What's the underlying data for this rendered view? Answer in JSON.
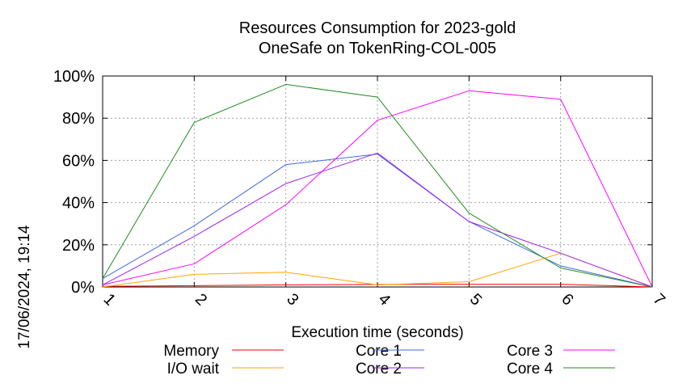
{
  "chart_data": {
    "type": "line",
    "title": [
      "Resources Consumption for 2023-gold",
      "OneSafe on TokenRing-COL-005"
    ],
    "xlabel": "Execution time (seconds)",
    "ylabel": "",
    "timestamp": "17/06/2024, 19:14",
    "xlim": [
      1,
      7
    ],
    "ylim": [
      0,
      100
    ],
    "x_ticks": [
      "1",
      "2",
      "3",
      "4",
      "5",
      "6",
      "7"
    ],
    "y_ticks": [
      "0%",
      "20%",
      "40%",
      "60%",
      "80%",
      "100%"
    ],
    "y_tick_values": [
      0,
      20,
      40,
      60,
      80,
      100
    ],
    "grid": true,
    "legend_position": "bottom",
    "x": [
      1,
      2,
      3,
      4,
      5,
      6,
      7
    ],
    "series": [
      {
        "name": "Memory",
        "color": "#ff0000",
        "values": [
          0.3,
          0.6,
          1.0,
          1.2,
          1.3,
          1.3,
          0
        ]
      },
      {
        "name": "I/O wait",
        "color": "#ffa500",
        "values": [
          0,
          6,
          7,
          1,
          2.5,
          16,
          0
        ]
      },
      {
        "name": "Core 1",
        "color": "#4169e1",
        "values": [
          4,
          29,
          58,
          63,
          31,
          10,
          0
        ]
      },
      {
        "name": "Core 2",
        "color": "#a020f0",
        "values": [
          1,
          24,
          49,
          63.5,
          31,
          16,
          0
        ]
      },
      {
        "name": "Core 3",
        "color": "#ff00ff",
        "values": [
          1,
          11,
          39,
          79,
          93,
          89,
          0
        ]
      },
      {
        "name": "Core 4",
        "color": "#228b22",
        "values": [
          4,
          78,
          96,
          90,
          35,
          9,
          0
        ]
      }
    ]
  }
}
